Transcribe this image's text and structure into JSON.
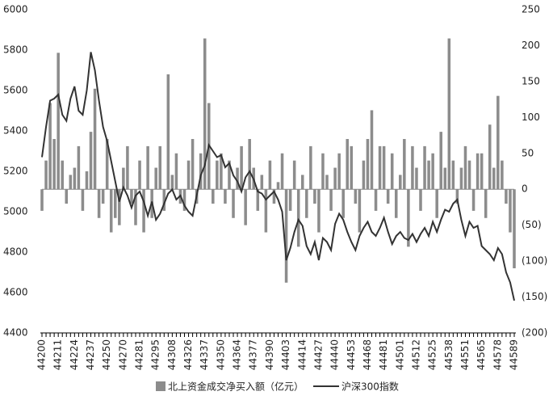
{
  "chart_data": {
    "type": "combo",
    "categories": [
      "44200",
      null,
      null,
      null,
      "44211",
      null,
      null,
      null,
      "44224",
      null,
      null,
      null,
      "44237",
      null,
      null,
      null,
      "44250",
      null,
      null,
      null,
      "44270",
      null,
      null,
      null,
      "44281",
      null,
      null,
      null,
      "44295",
      null,
      null,
      null,
      "44308",
      null,
      null,
      null,
      "44326",
      null,
      null,
      null,
      "44337",
      null,
      null,
      null,
      "44350",
      null,
      null,
      null,
      "44364",
      null,
      null,
      null,
      "44377",
      null,
      null,
      null,
      "44390",
      null,
      null,
      null,
      "44403",
      null,
      null,
      null,
      "44414",
      null,
      null,
      null,
      "44427",
      null,
      null,
      null,
      "44440",
      null,
      null,
      null,
      "44453",
      null,
      null,
      null,
      "44468",
      null,
      null,
      null,
      "44481",
      null,
      null,
      null,
      "44501",
      null,
      null,
      null,
      "44512",
      null,
      null,
      null,
      "44525",
      null,
      null,
      null,
      "44538",
      null,
      null,
      null,
      "44551",
      null,
      null,
      null,
      "44565",
      null,
      null,
      null,
      "44578",
      null,
      null,
      null,
      "44589"
    ],
    "series": [
      {
        "name": "北上资金成交净买入额（亿元）",
        "type": "bar",
        "axis": "y2",
        "color": "#8c8c8c",
        "values": [
          -30,
          40,
          120,
          70,
          190,
          40,
          -20,
          20,
          30,
          60,
          -30,
          25,
          80,
          140,
          -40,
          -20,
          70,
          -60,
          -40,
          -50,
          30,
          60,
          -20,
          -50,
          40,
          -60,
          60,
          -40,
          30,
          60,
          -30,
          160,
          20,
          50,
          -20,
          -30,
          40,
          70,
          -20,
          50,
          210,
          120,
          -20,
          40,
          50,
          -20,
          40,
          -40,
          30,
          60,
          -50,
          70,
          30,
          -30,
          20,
          -60,
          40,
          -20,
          10,
          50,
          -130,
          -30,
          40,
          -80,
          20,
          -40,
          60,
          -20,
          -60,
          50,
          20,
          -30,
          30,
          50,
          -40,
          70,
          60,
          -20,
          -60,
          40,
          70,
          110,
          -30,
          60,
          60,
          -20,
          50,
          -40,
          20,
          70,
          -80,
          60,
          30,
          -30,
          60,
          40,
          50,
          -40,
          80,
          30,
          210,
          40,
          -20,
          30,
          60,
          40,
          -30,
          50,
          50,
          -40,
          90,
          30,
          130,
          40,
          -20,
          -60,
          -110
        ]
      },
      {
        "name": "沪深300指数",
        "type": "line",
        "color": "#333333",
        "values": [
          5270,
          5420,
          5550,
          5560,
          5580,
          5480,
          5450,
          5560,
          5620,
          5500,
          5480,
          5600,
          5790,
          5700,
          5550,
          5420,
          5350,
          5250,
          5150,
          5050,
          5120,
          5080,
          5020,
          5080,
          5100,
          5050,
          4980,
          5050,
          4960,
          4990,
          5040,
          5090,
          5110,
          5060,
          5080,
          5030,
          5000,
          4980,
          5080,
          5180,
          5230,
          5330,
          5300,
          5270,
          5280,
          5220,
          5240,
          5180,
          5150,
          5100,
          5170,
          5200,
          5160,
          5100,
          5090,
          5060,
          5080,
          5100,
          5060,
          5000,
          4760,
          4820,
          4900,
          4960,
          4930,
          4830,
          4790,
          4850,
          4760,
          4870,
          4850,
          4810,
          4940,
          4990,
          4960,
          4900,
          4850,
          4810,
          4880,
          4920,
          4950,
          4900,
          4880,
          4920,
          4970,
          4900,
          4840,
          4880,
          4900,
          4870,
          4860,
          4890,
          4850,
          4890,
          4920,
          4880,
          4950,
          4900,
          4960,
          5010,
          5000,
          5040,
          5060,
          4960,
          4880,
          4950,
          4920,
          4930,
          4830,
          4810,
          4790,
          4760,
          4820,
          4790,
          4700,
          4650,
          4560
        ]
      }
    ],
    "ylim": [
      4400,
      6000
    ],
    "yticks": [
      4400,
      4600,
      4800,
      5000,
      5200,
      5400,
      5600,
      5800,
      6000
    ],
    "y2lim": [
      -200,
      250
    ],
    "y2ticks": [
      {
        "value": -200,
        "label": "(200)"
      },
      {
        "value": -150,
        "label": "(150)"
      },
      {
        "value": -100,
        "label": "(100)"
      },
      {
        "value": -50,
        "label": "(50)"
      },
      0,
      50,
      100,
      150,
      200,
      250
    ],
    "legend": "bottom",
    "grid": false
  }
}
